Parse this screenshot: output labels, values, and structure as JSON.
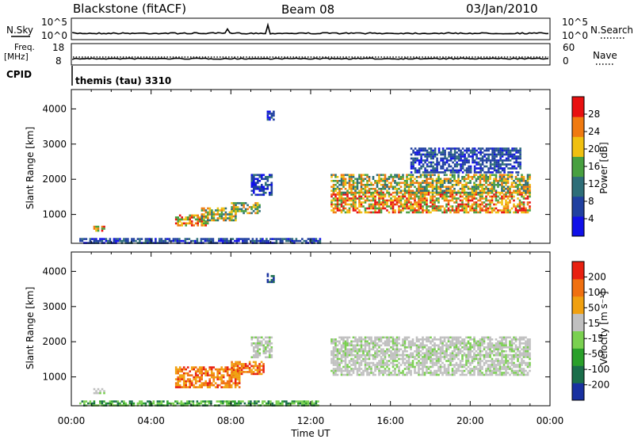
{
  "header": {
    "station": "Blackstone (fitACF)",
    "beam": "Beam 08",
    "date": "03/Jan/2010"
  },
  "params": {
    "nsky_label": "N.Sky",
    "nsky_ticks": [
      "10^5",
      "10^0"
    ],
    "nsearch_label": "N.Search",
    "nsearch_ticks": [
      "10^5",
      "10^0"
    ],
    "freq_label_1": "Freq.",
    "freq_label_2": "[MHz]",
    "freq_ticks": [
      "18",
      "8"
    ],
    "nave_label": "Nave",
    "nave_ticks": [
      "60",
      "0"
    ],
    "cpid_label": "CPID",
    "cpid_value": "themis (tau) 3310"
  },
  "chart_data": [
    {
      "type": "heatmap",
      "title": "Power",
      "ylabel": "Slant Range [km]",
      "ylim": [
        180,
        4550
      ],
      "yticks": [
        "4000",
        "3000",
        "2000",
        "1000"
      ],
      "xlim_hours": [
        0,
        24
      ],
      "colorbar": {
        "label": "Power [dB]",
        "ticks": [
          "28",
          "24",
          "20",
          "16",
          "12",
          "8",
          "4"
        ],
        "colors": [
          "#1010e8",
          "#2040a0",
          "#2e6e78",
          "#48a040",
          "#f0c010",
          "#f07a10",
          "#e81010"
        ]
      },
      "regions": [
        {
          "t": [
            1.1,
            1.6
          ],
          "r": [
            560,
            680
          ],
          "level": "high"
        },
        {
          "t": [
            5.2,
            6.8
          ],
          "r": [
            700,
            1000
          ],
          "level": "high"
        },
        {
          "t": [
            6.5,
            8.2
          ],
          "r": [
            850,
            1200
          ],
          "level": "mid"
        },
        {
          "t": [
            8.0,
            9.4
          ],
          "r": [
            1050,
            1350
          ],
          "level": "mid"
        },
        {
          "t": [
            9.0,
            10.0
          ],
          "r": [
            1550,
            2150
          ],
          "level": "low"
        },
        {
          "t": [
            9.8,
            10.1
          ],
          "r": [
            3700,
            3950
          ],
          "level": "low"
        },
        {
          "t": [
            13.0,
            23.0
          ],
          "r": [
            1050,
            1650
          ],
          "level": "high"
        },
        {
          "t": [
            13.0,
            23.0
          ],
          "r": [
            1600,
            2150
          ],
          "level": "mid"
        },
        {
          "t": [
            0.4,
            12.5
          ],
          "r": [
            200,
            330
          ],
          "level": "low"
        },
        {
          "t": [
            17.0,
            22.5
          ],
          "r": [
            2200,
            2900
          ],
          "level": "low"
        }
      ]
    },
    {
      "type": "heatmap",
      "title": "Velocity",
      "ylabel": "Slant Range [km]",
      "ylim": [
        180,
        4550
      ],
      "yticks": [
        "4000",
        "3000",
        "2000",
        "1000"
      ],
      "xlim_hours": [
        0,
        24
      ],
      "colorbar": {
        "label": "Velocity [m s⁻¹]",
        "ticks": [
          "200",
          "100",
          "50",
          "15",
          "-15",
          "-50",
          "-100",
          "-200"
        ],
        "colors": [
          "#1830a0",
          "#1a6e4a",
          "#2aa02a",
          "#7ad050",
          "#c0c0c0",
          "#f0a010",
          "#f07010",
          "#e82010"
        ]
      },
      "regions": [
        {
          "t": [
            1.1,
            1.6
          ],
          "r": [
            560,
            680
          ],
          "level": "gray"
        },
        {
          "t": [
            5.2,
            8.4
          ],
          "r": [
            700,
            1300
          ],
          "level": "orange"
        },
        {
          "t": [
            8.0,
            9.6
          ],
          "r": [
            1100,
            1450
          ],
          "level": "orange"
        },
        {
          "t": [
            9.0,
            10.0
          ],
          "r": [
            1550,
            2150
          ],
          "level": "gray"
        },
        {
          "t": [
            9.8,
            10.1
          ],
          "r": [
            3700,
            3950
          ],
          "level": "blue"
        },
        {
          "t": [
            13.0,
            23.0
          ],
          "r": [
            1050,
            1650
          ],
          "level": "gray"
        },
        {
          "t": [
            13.0,
            23.0
          ],
          "r": [
            1600,
            2150
          ],
          "level": "gray"
        },
        {
          "t": [
            0.4,
            12.5
          ],
          "r": [
            200,
            330
          ],
          "level": "green"
        }
      ]
    }
  ],
  "xaxis": {
    "ticks": [
      "00:00",
      "04:00",
      "08:00",
      "12:00",
      "16:00",
      "20:00",
      "00:00"
    ],
    "label": "Time UT"
  }
}
